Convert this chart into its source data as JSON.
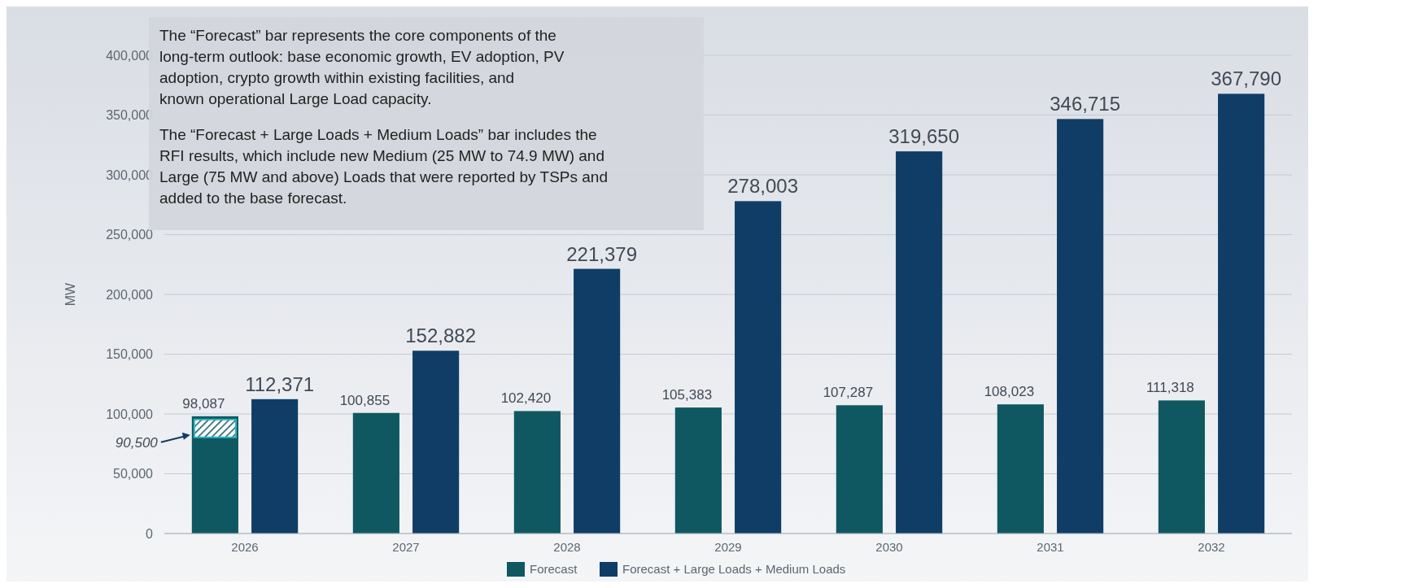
{
  "chart_data": {
    "type": "bar",
    "ylabel": "MW",
    "categories": [
      "2026",
      "2027",
      "2028",
      "2029",
      "2030",
      "2031",
      "2032"
    ],
    "series": [
      {
        "name": "Forecast",
        "color": "#0f5862",
        "values": [
          98087,
          100855,
          102420,
          105383,
          107287,
          108023,
          111318
        ],
        "value_labels": [
          "98,087",
          "100,855",
          "102,420",
          "105,383",
          "107,287",
          "108,023",
          "111,318"
        ]
      },
      {
        "name": "Forecast + Large Loads + Medium Loads",
        "color": "#0f3d66",
        "values": [
          112371,
          152882,
          221379,
          278003,
          319650,
          346715,
          367790
        ],
        "value_labels": [
          "112,371",
          "152,882",
          "221,379",
          "278,003",
          "319,650",
          "346,715",
          "367,790"
        ]
      }
    ],
    "ylim": [
      0,
      400000
    ],
    "yticks": [
      {
        "value": 0,
        "label": "0"
      },
      {
        "value": 50000,
        "label": "50,000"
      },
      {
        "value": 100000,
        "label": "100,000"
      },
      {
        "value": 150000,
        "label": "150,000"
      },
      {
        "value": 200000,
        "label": "200,000"
      },
      {
        "value": 250000,
        "label": "250,000"
      },
      {
        "value": 300000,
        "label": "300,000"
      },
      {
        "value": 350000,
        "label": "350,000"
      },
      {
        "value": 400000,
        "label": "400,000"
      }
    ],
    "grid": "y",
    "legend": "bottom",
    "annotations": [
      "The “Forecast” bar represents the core components of the long-term outlook: base economic growth, EV adoption, PV adoption, crypto growth within existing facilities, and known operational Large Load capacity.",
      "The “Forecast + Large Loads + Medium Loads” bar includes the RFI results, which include new Medium (25 MW to 74.9 MW) and Large (75 MW and above) Loads that were reported by TSPs and added to the base forecast.",
      "90,500"
    ]
  }
}
